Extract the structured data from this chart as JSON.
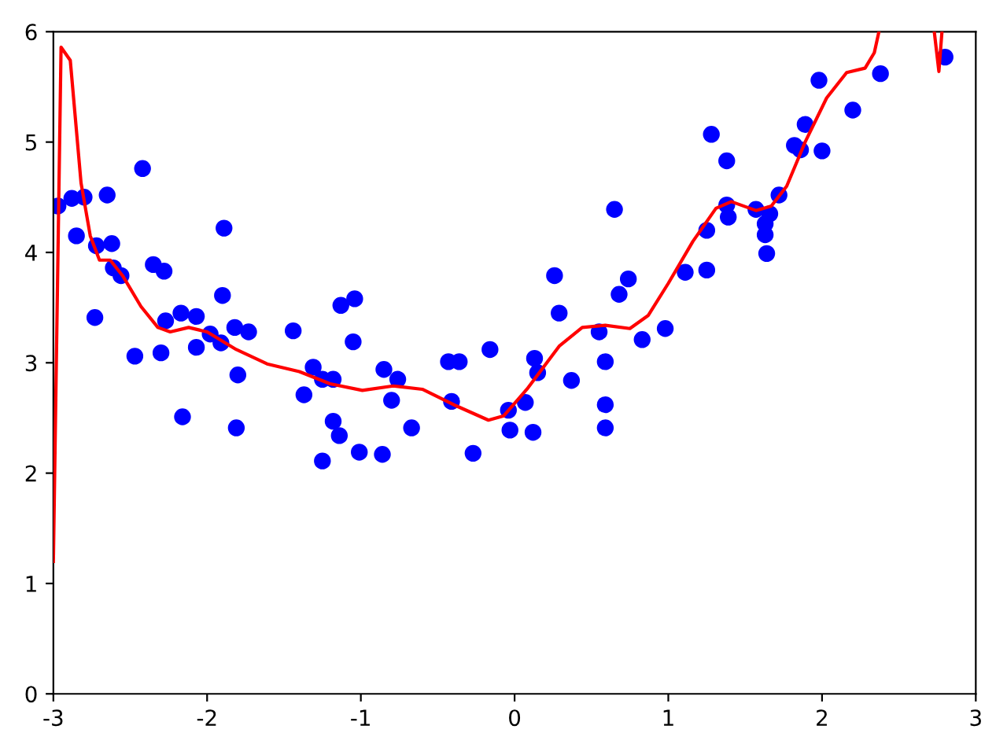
{
  "chart_data": {
    "type": "scatter",
    "xlim": [
      -3,
      3
    ],
    "ylim": [
      0,
      6
    ],
    "xticks": [
      -3,
      -2,
      -1,
      0,
      1,
      2,
      3
    ],
    "yticks": [
      0,
      1,
      2,
      3,
      4,
      5,
      6
    ],
    "grid": false,
    "legend": false,
    "series": [
      {
        "color": "#0000ff",
        "marker": "circle",
        "x": [
          -2.97,
          -2.88,
          -2.85,
          -2.8,
          -2.73,
          -2.72,
          -2.65,
          -2.62,
          -2.61,
          -2.56,
          -2.47,
          -2.42,
          -2.35,
          -2.3,
          -2.28,
          -2.27,
          -2.17,
          -2.16,
          -2.07,
          -2.07,
          -1.98,
          -1.91,
          -1.9,
          -1.89,
          -1.82,
          -1.81,
          -1.8,
          -1.73,
          -1.44,
          -1.37,
          -1.31,
          -1.25,
          -1.25,
          -1.18,
          -1.18,
          -1.14,
          -1.13,
          -1.05,
          -1.04,
          -1.01,
          -0.86,
          -0.85,
          -0.8,
          -0.76,
          -0.67,
          -0.43,
          -0.41,
          -0.36,
          -0.27,
          -0.16,
          -0.04,
          -0.03,
          0.07,
          0.12,
          0.13,
          0.15,
          0.26,
          0.29,
          0.37,
          0.55,
          0.59,
          0.59,
          0.59,
          0.65,
          0.68,
          0.74,
          0.83,
          0.98,
          1.11,
          1.25,
          1.25,
          1.28,
          1.38,
          1.38,
          1.39,
          1.57,
          1.63,
          1.63,
          1.64,
          1.66,
          1.72,
          1.82,
          1.86,
          1.89,
          1.98,
          2.0,
          2.2,
          2.38,
          2.8
        ],
        "values": [
          4.42,
          4.49,
          4.15,
          4.5,
          3.41,
          4.06,
          4.52,
          4.08,
          3.86,
          3.79,
          3.06,
          4.76,
          3.89,
          3.09,
          3.83,
          3.38,
          3.45,
          2.51,
          3.42,
          3.14,
          3.26,
          3.18,
          3.61,
          4.22,
          3.32,
          2.41,
          2.89,
          3.28,
          3.29,
          2.71,
          2.96,
          2.85,
          2.11,
          2.85,
          2.47,
          2.34,
          3.52,
          3.19,
          3.58,
          2.19,
          2.17,
          2.94,
          2.66,
          2.85,
          2.41,
          3.01,
          2.65,
          3.01,
          2.18,
          3.12,
          2.57,
          2.39,
          2.64,
          2.37,
          3.04,
          2.91,
          3.79,
          3.45,
          2.84,
          3.28,
          3.01,
          2.62,
          2.41,
          4.39,
          3.62,
          3.76,
          3.21,
          3.31,
          3.82,
          3.84,
          4.2,
          5.07,
          4.83,
          4.43,
          4.32,
          4.39,
          4.26,
          4.16,
          3.99,
          4.35,
          4.52,
          4.97,
          4.93,
          5.16,
          5.56,
          4.92,
          5.29,
          5.62,
          5.77
        ]
      },
      {
        "type": "line",
        "color": "#ff0000",
        "marker": "none",
        "line_style": "solid",
        "x": [
          -3.0,
          -2.95,
          -2.89,
          -2.82,
          -2.76,
          -2.7,
          -2.63,
          -2.55,
          -2.43,
          -2.32,
          -2.24,
          -2.12,
          -2.0,
          -1.81,
          -1.61,
          -1.4,
          -1.2,
          -0.99,
          -0.79,
          -0.6,
          -0.38,
          -0.17,
          -0.07,
          0.08,
          0.29,
          0.44,
          0.59,
          0.75,
          0.87,
          1.0,
          1.16,
          1.31,
          1.41,
          1.57,
          1.67,
          1.77,
          1.89,
          2.03,
          2.16,
          2.28,
          2.34,
          2.37,
          2.55,
          2.73,
          2.76,
          2.78
        ],
        "values": [
          1.2,
          5.86,
          5.74,
          4.63,
          4.15,
          3.93,
          3.93,
          3.79,
          3.51,
          3.32,
          3.28,
          3.32,
          3.28,
          3.12,
          2.99,
          2.92,
          2.81,
          2.75,
          2.79,
          2.76,
          2.61,
          2.48,
          2.52,
          2.76,
          3.15,
          3.32,
          3.34,
          3.31,
          3.43,
          3.72,
          4.1,
          4.4,
          4.46,
          4.38,
          4.42,
          4.6,
          5.0,
          5.4,
          5.63,
          5.67,
          5.81,
          6.0,
          null,
          6.0,
          5.64,
          6.0
        ]
      }
    ]
  }
}
